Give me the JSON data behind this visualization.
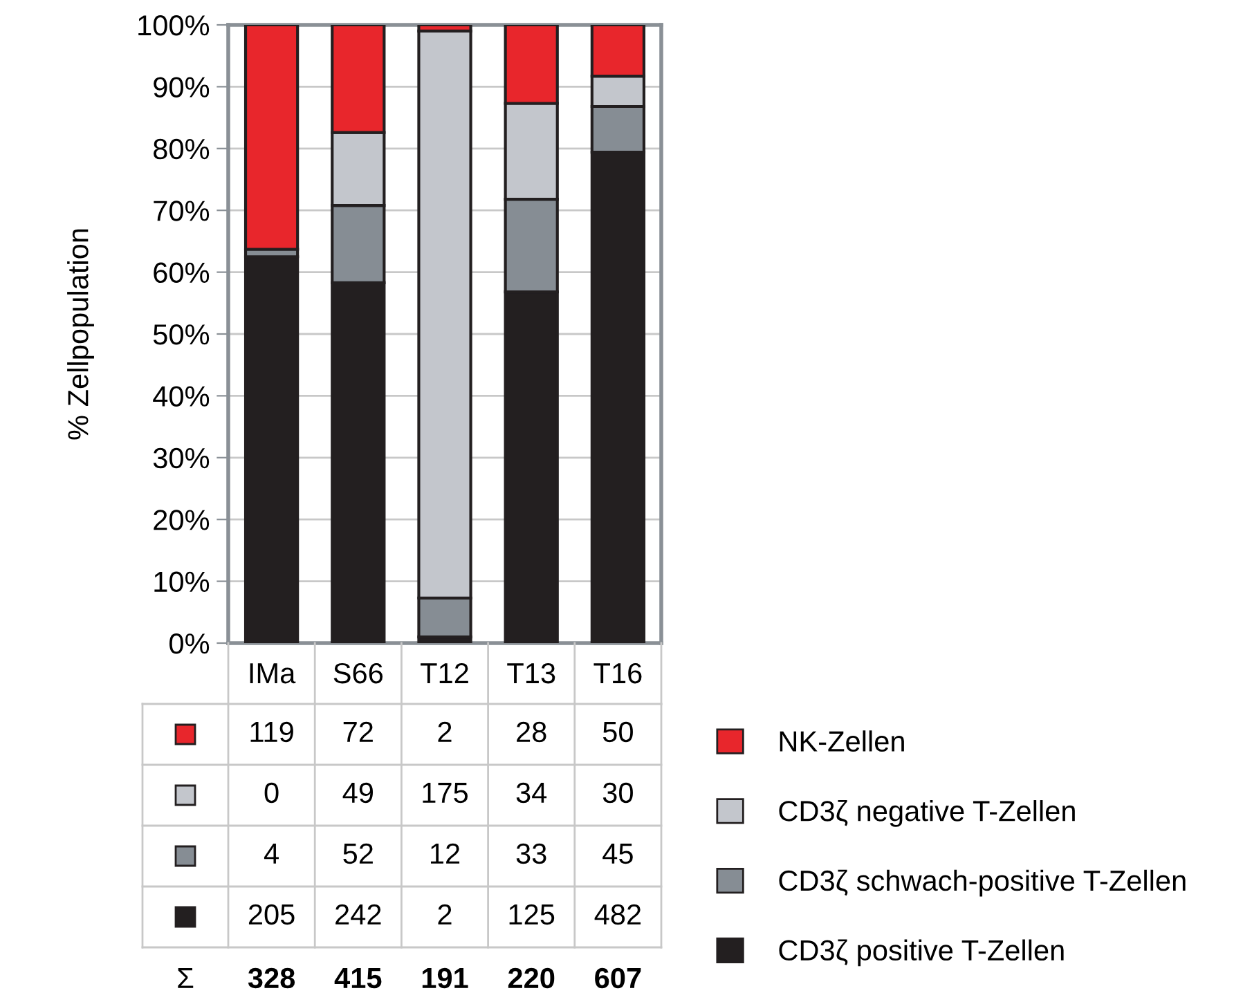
{
  "chart_data": [
    {
      "type": "bar",
      "stacked": true,
      "ylabel": "% Zellpopulation",
      "categories": [
        "IMa",
        "S66",
        "T12",
        "T13",
        "T16"
      ],
      "series": [
        {
          "name": "CD3ζ positive T-Zellen",
          "color": "#231f20",
          "values": [
            62.5,
            58.3,
            1.0,
            56.8,
            79.4
          ]
        },
        {
          "name": "CD3ζ schwach-positive T-Zellen",
          "color": "#868d94",
          "values": [
            1.2,
            12.5,
            6.3,
            15.0,
            7.4
          ]
        },
        {
          "name": "CD3ζ negative T-Zellen",
          "color": "#c3c6cc",
          "values": [
            0.0,
            11.8,
            91.7,
            15.5,
            4.9
          ]
        },
        {
          "name": "NK-Zellen",
          "color": "#e8262c",
          "values": [
            36.3,
            17.4,
            1.0,
            12.7,
            8.3
          ]
        }
      ],
      "ylim": [
        0,
        100
      ],
      "yticks": [
        {
          "value": 0,
          "label": "0%"
        },
        {
          "value": 10,
          "label": "10%"
        },
        {
          "value": 20,
          "label": "20%"
        },
        {
          "value": 30,
          "label": "30%"
        },
        {
          "value": 40,
          "label": "40%"
        },
        {
          "value": 50,
          "label": "50%"
        },
        {
          "value": 60,
          "label": "60%"
        },
        {
          "value": 70,
          "label": "70%"
        },
        {
          "value": 80,
          "label": "80%"
        },
        {
          "value": 90,
          "label": "90%"
        },
        {
          "value": 100,
          "label": "100%"
        }
      ],
      "grid": "y",
      "legend": "right"
    },
    {
      "type": "other",
      "colors": [
        "#e8262c",
        "#c3c6cc",
        "#868d94",
        "#231f20"
      ],
      "annotations": [
        "119",
        "72",
        "2",
        "28",
        "50",
        "0",
        "49",
        "175",
        "34",
        "30",
        "4",
        "52",
        "12",
        "33",
        "45",
        "205",
        "242",
        "2",
        "125",
        "482",
        "Σ"
      ],
      "totals": [
        "328",
        "415",
        "191",
        "220",
        "607"
      ]
    }
  ]
}
